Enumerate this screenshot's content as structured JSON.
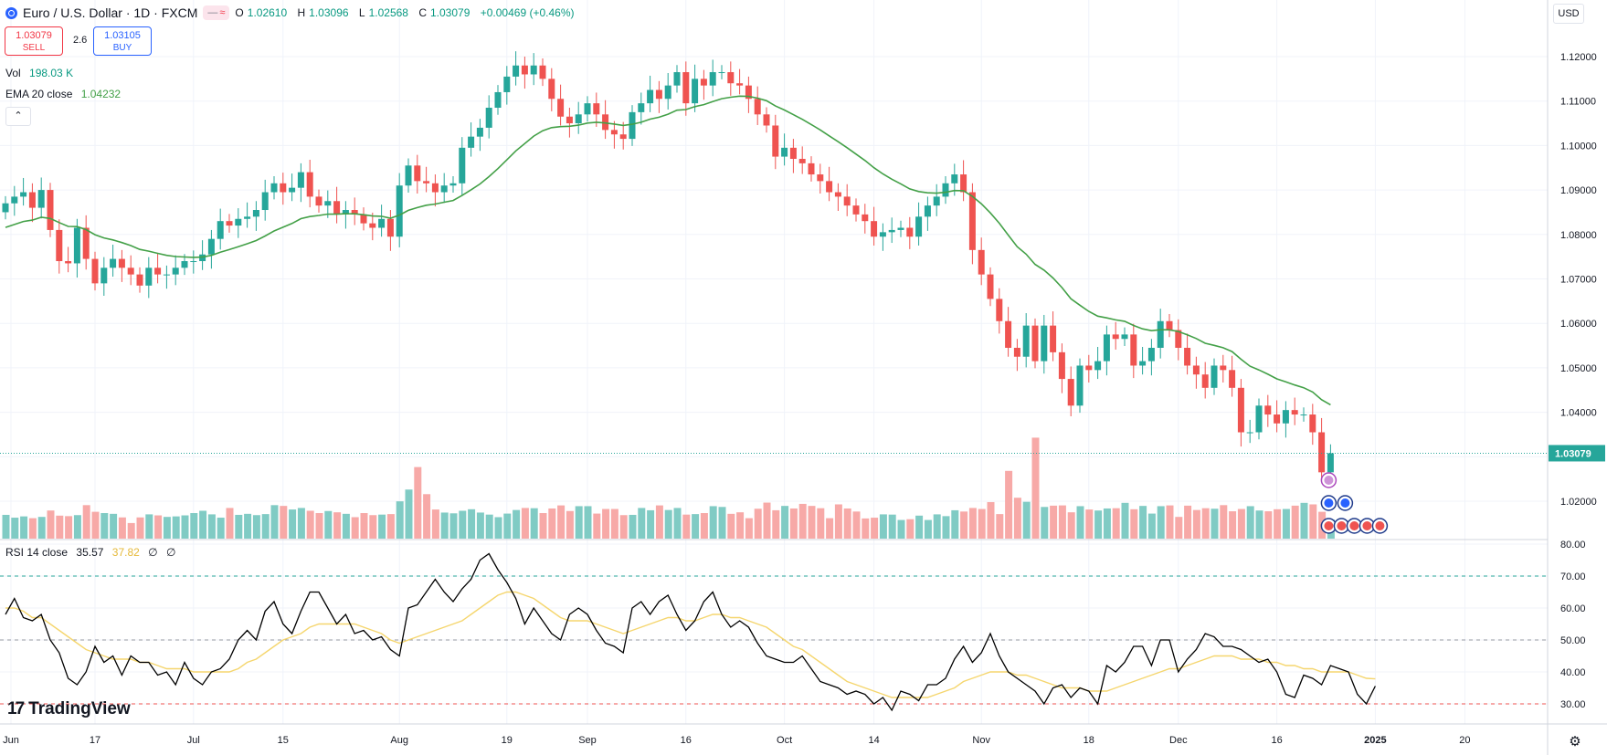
{
  "header": {
    "symbol_title": "Euro / U.S. Dollar · 1D · FXCM",
    "pill_left": "—",
    "pill_right": "≈",
    "open_label": "O",
    "open_value": "1.02610",
    "high_label": "H",
    "high_value": "1.03096",
    "low_label": "L",
    "low_value": "1.02568",
    "close_label": "C",
    "close_value": "1.03079",
    "change": "+0.00469 (+0.46%)"
  },
  "trade": {
    "sell_price": "1.03079",
    "sell_label": "SELL",
    "spread": "2.6",
    "buy_price": "1.03105",
    "buy_label": "BUY"
  },
  "indicators": {
    "vol_label": "Vol",
    "vol_value": "198.03 K",
    "ema_label": "EMA 20 close",
    "ema_value": "1.04232",
    "rsi_label": "RSI 14 close",
    "rsi_value": "35.57",
    "rsi_ma_value": "37.82",
    "rsi_extra1": "∅",
    "rsi_extra2": "∅",
    "collapse_icon": "⌃"
  },
  "currency_button": "USD",
  "brand": "TradingView",
  "colors": {
    "up": "#26a69a",
    "down": "#ef5350",
    "ema": "#43a047",
    "rsi": "#000000",
    "rsi_ma": "#f5d66e",
    "vol_up": "#80cbc4",
    "vol_down": "#f7a9a7",
    "last_price": "#26a69a"
  },
  "chart_data": [
    {
      "type": "candlestick",
      "title": "Euro / U.S. Dollar · 1D · FXCM",
      "price_ticks": [
        "1.12000",
        "1.11000",
        "1.10000",
        "1.09000",
        "1.08000",
        "1.07000",
        "1.06000",
        "1.05000",
        "1.04000",
        "1.02000"
      ],
      "price_tick_values": [
        1.12,
        1.11,
        1.1,
        1.09,
        1.08,
        1.07,
        1.06,
        1.05,
        1.04,
        1.02
      ],
      "x_ticks": [
        "Jun",
        "17",
        "Jul",
        "15",
        "Aug",
        "19",
        "Sep",
        "16",
        "Oct",
        "14",
        "Nov",
        "18",
        "Dec",
        "16",
        "2025",
        "20"
      ],
      "x_tick_index": [
        -1,
        10,
        21,
        31,
        44,
        56,
        65,
        76,
        87,
        97,
        109,
        121,
        131,
        142,
        153,
        163
      ],
      "last_price_label": "1.03079",
      "last_price": 1.03079,
      "closes": [
        1.087,
        1.0885,
        1.0895,
        1.086,
        1.09,
        1.081,
        1.074,
        1.0735,
        1.0815,
        1.0745,
        1.069,
        1.0725,
        1.0745,
        1.0725,
        1.071,
        1.0685,
        1.0725,
        1.071,
        1.071,
        1.0725,
        1.074,
        1.074,
        1.0755,
        1.079,
        1.083,
        1.082,
        1.0835,
        1.084,
        1.0855,
        1.0895,
        1.0915,
        1.0895,
        1.0905,
        1.094,
        1.0885,
        1.0865,
        1.0875,
        1.0845,
        1.0855,
        1.0845,
        1.0825,
        1.0815,
        1.0835,
        1.0795,
        1.091,
        1.0955,
        1.092,
        1.0915,
        1.0895,
        1.091,
        1.0915,
        1.0995,
        1.102,
        1.104,
        1.1085,
        1.112,
        1.1155,
        1.118,
        1.116,
        1.118,
        1.115,
        1.1105,
        1.1065,
        1.105,
        1.107,
        1.1095,
        1.107,
        1.1035,
        1.1025,
        1.1015,
        1.1075,
        1.1095,
        1.1125,
        1.1105,
        1.1135,
        1.1165,
        1.1095,
        1.115,
        1.1135,
        1.1165,
        1.1165,
        1.114,
        1.1135,
        1.1105,
        1.107,
        1.1045,
        1.0975,
        1.0995,
        1.097,
        1.096,
        1.0935,
        1.092,
        1.0895,
        1.0885,
        1.0865,
        1.0845,
        1.083,
        1.0795,
        1.0805,
        1.081,
        1.0815,
        1.0795,
        1.084,
        1.0865,
        1.0885,
        1.0915,
        1.0935,
        1.0895,
        1.0765,
        1.071,
        1.0655,
        1.0605,
        1.0545,
        1.0525,
        1.0595,
        1.0515,
        1.0595,
        1.0535,
        1.0475,
        1.0415,
        1.0505,
        1.0495,
        1.0515,
        1.0575,
        1.0565,
        1.0575,
        1.0505,
        1.0515,
        1.0545,
        1.0605,
        1.0585,
        1.0545,
        1.0505,
        1.0485,
        1.0455,
        1.0505,
        1.0495,
        1.0455,
        1.0355,
        1.0355,
        1.0415,
        1.0395,
        1.0375,
        1.0405,
        1.0395,
        1.0395,
        1.0355,
        1.0265,
        1.03079
      ],
      "volumes": [
        0.93,
        0.82,
        0.87,
        0.8,
        0.85,
        1.1,
        0.9,
        0.88,
        0.92,
        1.31,
        1.05,
        1.0,
        0.97,
        0.83,
        0.61,
        0.83,
        0.95,
        0.91,
        0.85,
        0.87,
        0.91,
        1.0,
        1.09,
        0.95,
        0.82,
        1.2,
        0.93,
        0.97,
        0.92,
        0.96,
        1.31,
        1.28,
        1.14,
        1.2,
        1.09,
        1.0,
        1.08,
        1.03,
        0.97,
        0.84,
        1.0,
        0.92,
        0.94,
        0.96,
        1.46,
        1.92,
        2.33,
        1.74,
        1.14,
        1.02,
        0.99,
        1.09,
        1.15,
        1.02,
        0.94,
        0.84,
        0.98,
        1.12,
        1.2,
        1.19,
        1.0,
        1.18,
        1.3,
        1.08,
        1.27,
        1.27,
        0.98,
        1.16,
        1.16,
        0.92,
        0.93,
        1.2,
        1.11,
        1.3,
        1.12,
        1.2,
        0.94,
        0.96,
        1.0,
        1.27,
        1.24,
        0.97,
        1.03,
        0.8,
        1.17,
        1.41,
        1.11,
        1.28,
        1.18,
        1.36,
        1.28,
        1.19,
        0.8,
        1.34,
        1.18,
        1.06,
        0.79,
        0.82,
        0.95,
        0.94,
        0.73,
        0.76,
        0.9,
        0.73,
        0.95,
        0.88,
        1.11,
        1.06,
        1.2,
        1.16,
        1.43,
        0.96,
        2.65,
        1.6,
        1.44,
        1.34,
        1.24,
        1.29,
        1.3,
        1.03,
        1.27,
        1.14,
        1.1,
        1.18,
        1.19,
        1.4,
        1.15,
        1.28,
        0.98,
        1.27,
        1.3,
        0.85,
        1.29,
        1.12,
        1.19,
        1.17,
        1.31,
        1.07,
        1.16,
        1.27,
        1.1,
        1.07,
        1.15,
        1.16,
        1.29,
        1.4,
        1.34,
        1.05,
        0.75,
        1.22,
        0.84,
        0.85,
        1.04,
        1.03,
        1.07
      ],
      "volume_spikes": {
        "46": 2.8,
        "115": 3.95
      }
    },
    {
      "type": "line",
      "title": "RSI 14 close",
      "ylim": [
        24,
        84
      ],
      "y_ticks": [
        "80.00",
        "70.00",
        "60.00",
        "50.00",
        "40.00",
        "30.00"
      ],
      "y_tick_values": [
        80,
        70,
        60,
        50,
        40,
        30
      ],
      "levels": [
        70,
        50,
        30
      ],
      "series": [
        {
          "name": "RSI",
          "values": [
            58,
            63,
            57,
            56,
            58,
            50,
            46,
            38,
            36,
            40,
            48,
            43,
            45,
            39,
            45,
            43,
            43,
            39,
            40,
            36,
            43,
            38,
            36,
            40,
            41,
            44,
            50,
            53,
            50,
            59,
            62,
            55,
            52,
            59,
            65,
            65,
            60,
            55,
            58,
            52,
            53,
            50,
            51,
            47,
            45,
            60,
            61,
            65,
            69,
            65,
            62,
            66,
            69,
            75,
            77,
            72,
            68,
            63,
            55,
            60,
            56,
            52,
            50,
            58,
            60,
            58,
            53,
            49,
            48,
            46,
            60,
            62,
            58,
            62,
            64,
            58,
            53,
            56,
            62,
            65,
            58,
            54,
            56,
            54,
            49,
            45,
            44,
            43,
            43,
            45,
            41,
            37,
            36,
            35,
            33,
            34,
            33,
            30,
            32,
            28,
            34,
            33,
            31,
            36,
            36,
            38,
            44,
            48,
            43,
            46,
            52,
            45,
            40,
            38,
            36,
            34,
            30,
            35,
            36,
            32,
            35,
            34,
            30,
            42,
            40,
            43,
            48,
            48,
            42,
            50,
            50,
            40,
            44,
            47,
            52,
            51,
            48,
            48,
            47,
            45,
            43,
            44,
            40,
            33,
            32,
            39,
            38,
            36,
            42,
            41,
            40,
            33,
            30,
            35.57
          ]
        },
        {
          "name": "RSI MA",
          "values": [
            60,
            60,
            59,
            57,
            57,
            55,
            53,
            51,
            49,
            47,
            46,
            45,
            44,
            44,
            44,
            43,
            43,
            42,
            41,
            41,
            41,
            40,
            40,
            40,
            40,
            40,
            41,
            43,
            44,
            46,
            48,
            50,
            51,
            52,
            54,
            55,
            55,
            55,
            55,
            55,
            54,
            53,
            52,
            50,
            49,
            50,
            51,
            52,
            53,
            54,
            55,
            56,
            58,
            60,
            62,
            64,
            65,
            65,
            64,
            63,
            61,
            59,
            57,
            56,
            56,
            56,
            55,
            54,
            53,
            52,
            53,
            54,
            55,
            56,
            57,
            57,
            56,
            56,
            57,
            58,
            58,
            57,
            57,
            56,
            55,
            54,
            52,
            50,
            48,
            47,
            45,
            43,
            41,
            39,
            37,
            36,
            35,
            34,
            33,
            32,
            32,
            32,
            32,
            32,
            33,
            34,
            35,
            37,
            38,
            39,
            40,
            40,
            40,
            39,
            39,
            38,
            37,
            36,
            35,
            35,
            35,
            34,
            34,
            34,
            35,
            36,
            37,
            38,
            39,
            40,
            41,
            41,
            42,
            43,
            44,
            45,
            45,
            45,
            44,
            44,
            44,
            43,
            43,
            42,
            42,
            41,
            41,
            40,
            40,
            40,
            40,
            39,
            38,
            37.82
          ]
        }
      ]
    }
  ]
}
